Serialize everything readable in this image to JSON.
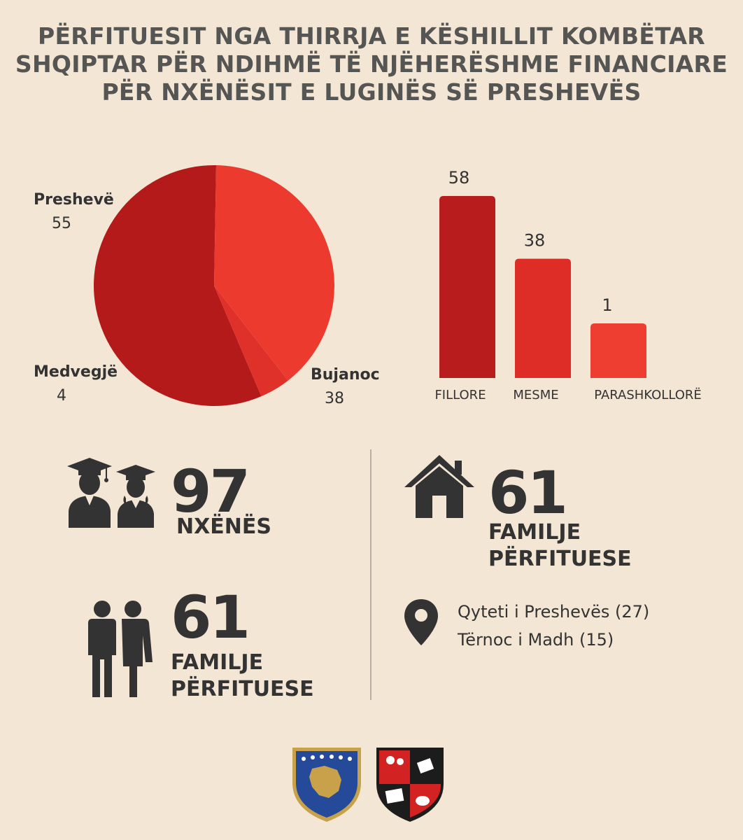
{
  "title_lines": [
    "PËRFITUESIT NGA THIRRJA E KËSHILLIT KOMBËTAR",
    "SHQIPTAR PËR NDIHMË TË NJËHERËSHME FINANCIARE",
    "PËR NXËNËSIT E LUGINËS SË PRESHEVËS"
  ],
  "chart_data": [
    {
      "type": "pie",
      "slices": [
        {
          "label": "Preshevë",
          "value": 55,
          "color": "#b51a1a"
        },
        {
          "label": "Medvegjë",
          "value": 4,
          "color": "#e0302a"
        },
        {
          "label": "Bujanoc",
          "value": 38,
          "color": "#ec3b2e"
        }
      ]
    },
    {
      "type": "bar",
      "categories": [
        "FILLORE",
        "MESME",
        "PARASHKOLLORË"
      ],
      "values": [
        58,
        38,
        1
      ],
      "colors": [
        "#b81c1c",
        "#dd2d26",
        "#ee3d31"
      ],
      "data_labels": [
        "58",
        "38",
        "1"
      ]
    }
  ],
  "stats": {
    "students_number": "97",
    "students_label": "NXËNËS",
    "families_number": "61",
    "families_label_1": "FAMILJE",
    "families_label_2": "PËRFITUESE",
    "families2_number": "61",
    "families2_label_1": "FAMILJE",
    "families2_label_2": "PËRFITUESE"
  },
  "locations": [
    "Qyteti i Preshevës (27)",
    "Tërnoc i Madh (15)"
  ],
  "icons": {
    "students": "graduates-icon",
    "families": "couple-icon",
    "home": "house-icon",
    "location": "map-pin-icon"
  },
  "logos": [
    "kosovo-coat-of-arms",
    "albanian-national-council-emblem"
  ],
  "colors": {
    "background": "#f4e6d4",
    "accent_dark": "#b51a1a",
    "accent": "#ec3b2e",
    "text": "#333333"
  }
}
